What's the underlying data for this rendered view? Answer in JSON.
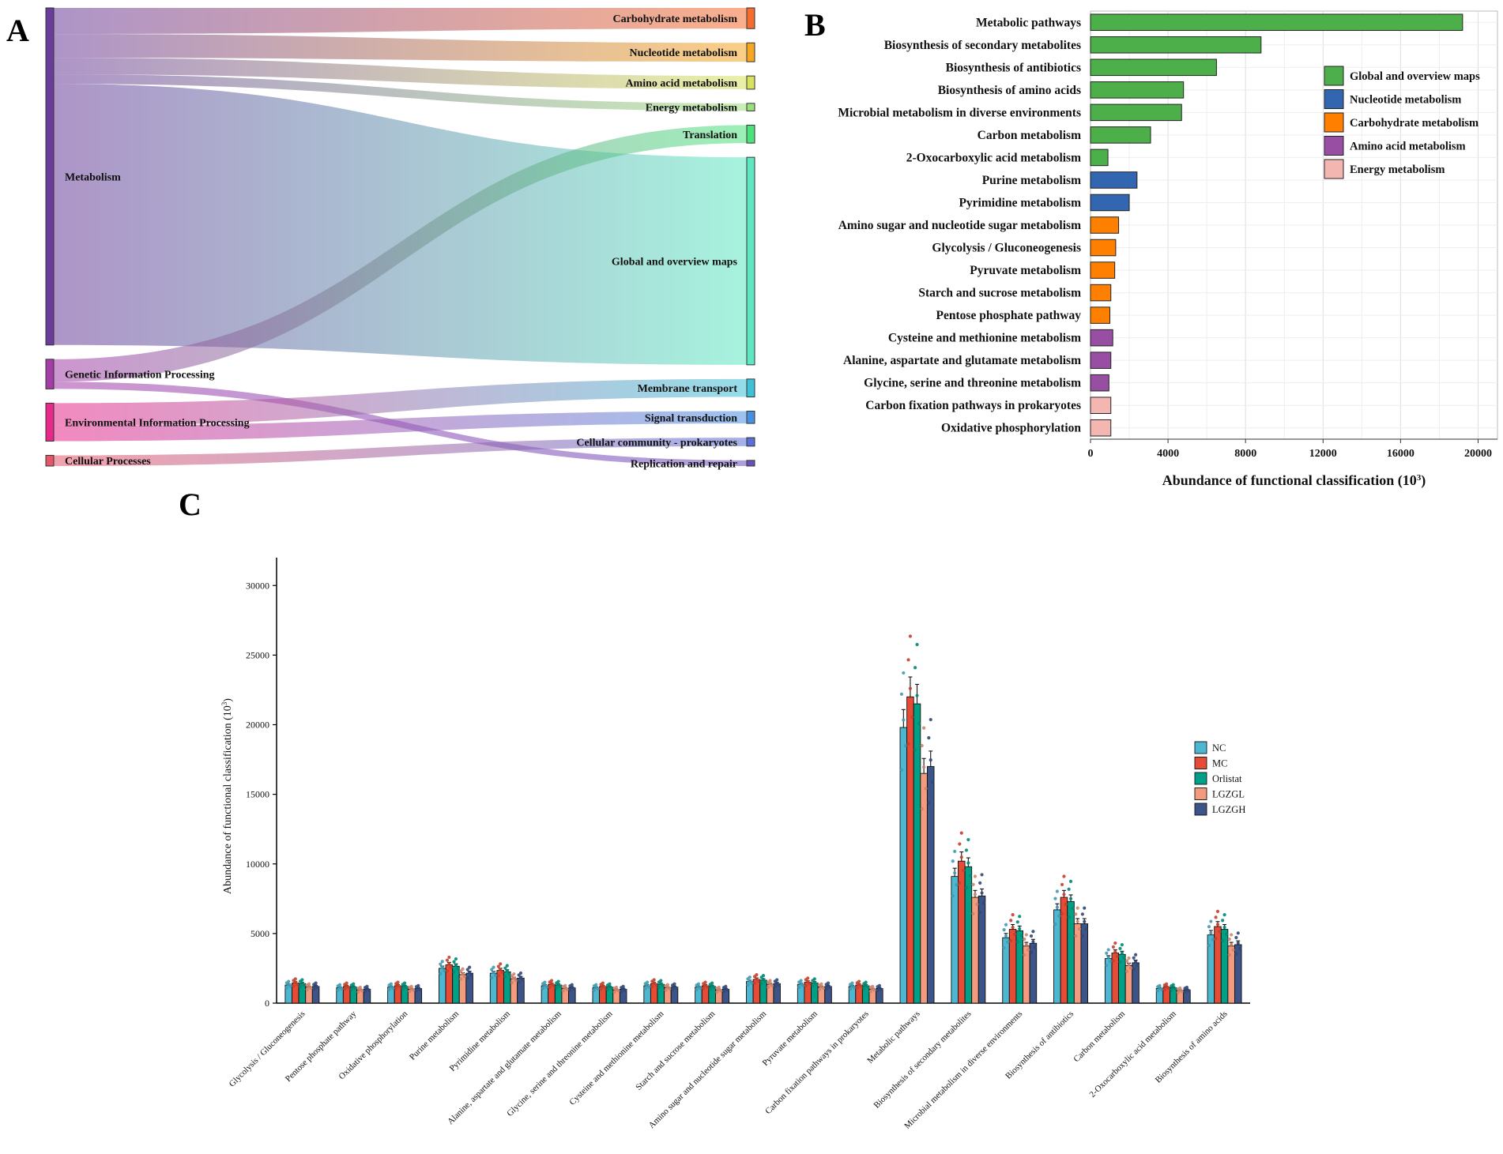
{
  "panel_labels": {
    "a": "A",
    "b": "B",
    "c": "C"
  },
  "chart_data": [
    {
      "type": "sankey",
      "panel": "A",
      "sources": [
        {
          "name": "Metabolism",
          "color": "#6a3d9a"
        },
        {
          "name": "Genetic Information Processing",
          "color": "#a33ea8"
        },
        {
          "name": "Environmental Information Processing",
          "color": "#e7298a"
        },
        {
          "name": "Cellular Processes",
          "color": "#e6566a"
        }
      ],
      "targets": [
        {
          "name": "Carbohydrate metabolism",
          "color": "#f46d2e"
        },
        {
          "name": "Nucleotide metabolism",
          "color": "#f5a623"
        },
        {
          "name": "Amino acid metabolism",
          "color": "#d7e35e"
        },
        {
          "name": "Energy metabolism",
          "color": "#9be07a"
        },
        {
          "name": "Translation",
          "color": "#4be27c"
        },
        {
          "name": "Global and overview maps",
          "color": "#5ee8c2"
        },
        {
          "name": "Membrane transport",
          "color": "#3ec1d6"
        },
        {
          "name": "Signal transduction",
          "color": "#4a90e2"
        },
        {
          "name": "Cellular community - prokaryotes",
          "color": "#5b6fd6"
        },
        {
          "name": "Replication and repair",
          "color": "#6b4fbb"
        }
      ],
      "links": [
        {
          "source": "Metabolism",
          "target": "Carbohydrate metabolism",
          "value": 2.2
        },
        {
          "source": "Metabolism",
          "target": "Nucleotide metabolism",
          "value": 2.0
        },
        {
          "source": "Metabolism",
          "target": "Amino acid metabolism",
          "value": 1.4
        },
        {
          "source": "Metabolism",
          "target": "Energy metabolism",
          "value": 0.8
        },
        {
          "source": "Metabolism",
          "target": "Global and overview maps",
          "value": 22.0
        },
        {
          "source": "Genetic Information Processing",
          "target": "Translation",
          "value": 1.9
        },
        {
          "source": "Genetic Information Processing",
          "target": "Replication and repair",
          "value": 0.6
        },
        {
          "source": "Environmental Information Processing",
          "target": "Membrane transport",
          "value": 1.9
        },
        {
          "source": "Environmental Information Processing",
          "target": "Signal transduction",
          "value": 1.3
        },
        {
          "source": "Cellular Processes",
          "target": "Cellular community - prokaryotes",
          "value": 0.9
        }
      ]
    },
    {
      "type": "bar",
      "panel": "B",
      "orientation": "horizontal",
      "categories": [
        "Metabolic pathways",
        "Biosynthesis of secondary metabolites",
        "Biosynthesis of antibiotics",
        "Biosynthesis of amino acids",
        "Microbial metabolism in diverse environments",
        "Carbon metabolism",
        "2-Oxocarboxylic acid metabolism",
        "Purine metabolism",
        "Pyrimidine metabolism",
        "Amino sugar and nucleotide sugar metabolism",
        "Glycolysis / Gluconeogenesis",
        "Pyruvate metabolism",
        "Starch and sucrose metabolism",
        "Pentose phosphate pathway",
        "Cysteine and methionine metabolism",
        "Alanine, aspartate and glutamate metabolism",
        "Glycine, serine and threonine metabolism",
        "Carbon fixation pathways in prokaryotes",
        "Oxidative phosphorylation"
      ],
      "values": [
        19200,
        8800,
        6500,
        4800,
        4700,
        3100,
        900,
        2400,
        2000,
        1450,
        1300,
        1250,
        1050,
        1000,
        1150,
        1050,
        950,
        1050,
        1050
      ],
      "groups": [
        "Global and overview maps",
        "Global and overview maps",
        "Global and overview maps",
        "Global and overview maps",
        "Global and overview maps",
        "Global and overview maps",
        "Global and overview maps",
        "Nucleotide metabolism",
        "Nucleotide metabolism",
        "Carbohydrate metabolism",
        "Carbohydrate metabolism",
        "Carbohydrate metabolism",
        "Carbohydrate metabolism",
        "Carbohydrate metabolism",
        "Amino acid metabolism",
        "Amino acid metabolism",
        "Amino acid metabolism",
        "Energy metabolism",
        "Energy metabolism"
      ],
      "legend": [
        {
          "name": "Global and overview maps",
          "color": "#4daf4a"
        },
        {
          "name": "Nucleotide metabolism",
          "color": "#3366b0"
        },
        {
          "name": "Carbohydrate metabolism",
          "color": "#ff7f00"
        },
        {
          "name": "Amino acid metabolism",
          "color": "#984ea3"
        },
        {
          "name": "Energy metabolism",
          "color": "#f4b6b0"
        }
      ],
      "xlabel_main": "Abundance of functional classification (10",
      "xlabel_sup": "3",
      "xlabel_end": ")",
      "xlim": [
        0,
        21000
      ],
      "xticks": [
        "0",
        "4000",
        "8000",
        "12000",
        "16000",
        "20000"
      ],
      "xtick_values": [
        0,
        4000,
        8000,
        12000,
        16000,
        20000
      ],
      "grid": true,
      "legend_position": "top-right"
    },
    {
      "type": "bar",
      "panel": "C",
      "orientation": "vertical",
      "categories": [
        "Glycolysis / Gluconeogenesis",
        "Pentose phosphate pathway",
        "Oxidative phosphorylation",
        "Purine metabolism",
        "Pyrimidine metabolism",
        "Alanine, aspartate and glutamate metabolism",
        "Glycine, serine and threonine metabolism",
        "Cysteine and methionine metabolism",
        "Starch and sucrose metabolism",
        "Amino sugar and nucleotide sugar metabolism",
        "Pyruvate metabolism",
        "Carbon fixation pathways in prokaryotes",
        "Metabolic pathways",
        "Biosynthesis of secondary metabolites",
        "Microbial metabolism in diverse environments",
        "Biosynthesis of antibiotics",
        "Carbon metabolism",
        "2-Oxocarboxylic acid metabolism",
        "Biosynthesis of amino acids"
      ],
      "series": [
        {
          "name": "NC",
          "color": "#4db6d0",
          "values": [
            1300,
            1100,
            1150,
            2500,
            2150,
            1250,
            1100,
            1250,
            1150,
            1550,
            1350,
            1200,
            19800,
            9100,
            4700,
            6700,
            3200,
            1050,
            4900
          ]
        },
        {
          "name": "MC",
          "color": "#e64b35",
          "values": [
            1450,
            1200,
            1250,
            2750,
            2350,
            1350,
            1200,
            1400,
            1250,
            1700,
            1500,
            1300,
            22000,
            10200,
            5300,
            7600,
            3600,
            1150,
            5500
          ]
        },
        {
          "name": "Orlistat",
          "color": "#00a087",
          "values": [
            1400,
            1150,
            1200,
            2650,
            2250,
            1300,
            1150,
            1350,
            1200,
            1650,
            1450,
            1250,
            21500,
            9800,
            5200,
            7300,
            3500,
            1100,
            5300
          ]
        },
        {
          "name": "LGZGL",
          "color": "#f39b7f",
          "values": [
            1150,
            950,
            1000,
            2050,
            1750,
            1050,
            950,
            1100,
            950,
            1350,
            1150,
            1000,
            16500,
            7600,
            4100,
            5700,
            2700,
            900,
            4100
          ]
        },
        {
          "name": "LGZGH",
          "color": "#3c5488",
          "values": [
            1200,
            1000,
            1050,
            2150,
            1800,
            1100,
            1000,
            1150,
            1000,
            1400,
            1200,
            1050,
            17000,
            7700,
            4300,
            5700,
            2900,
            950,
            4200
          ]
        }
      ],
      "ylabel_main": "Abundance of functional classification (10",
      "ylabel_sup": "3",
      "ylabel_end": ")",
      "ylim": [
        0,
        32000
      ],
      "yticks": [
        "0",
        "5000",
        "10000",
        "15000",
        "20000",
        "25000",
        "30000"
      ],
      "ytick_values": [
        0,
        5000,
        10000,
        15000,
        20000,
        25000,
        30000
      ],
      "legend_position": "right"
    }
  ]
}
